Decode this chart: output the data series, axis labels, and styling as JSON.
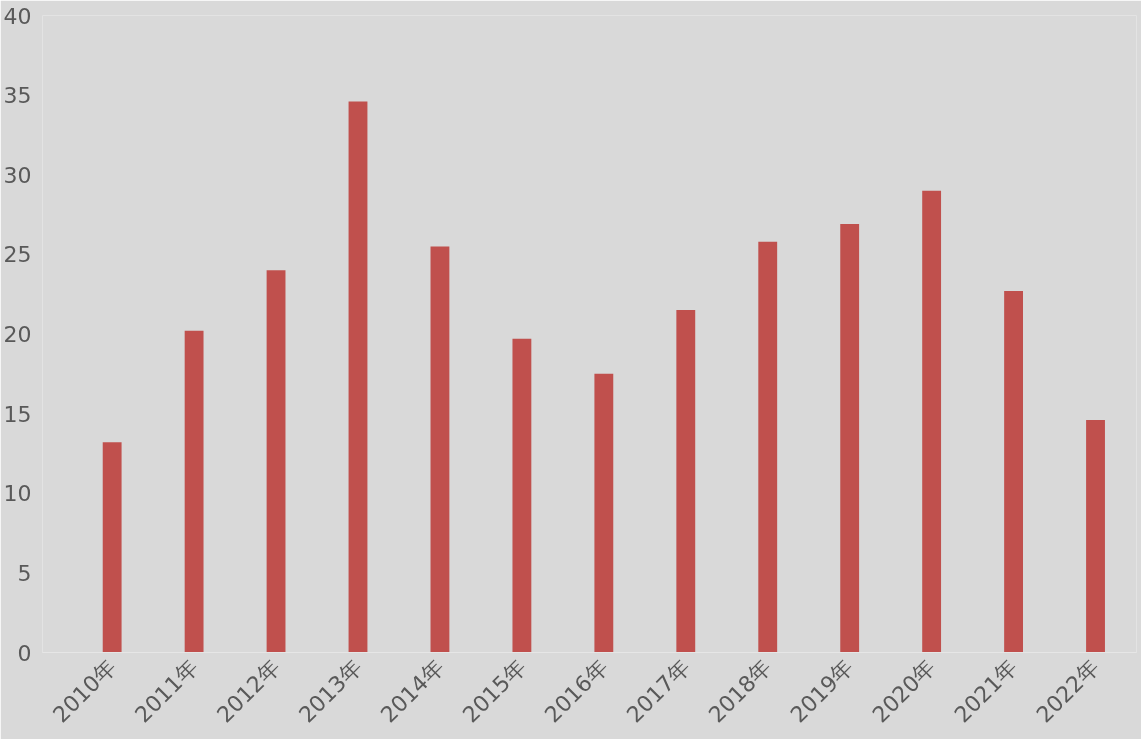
{
  "chart_data": {
    "type": "bar",
    "categories": [
      "2010年",
      "2011年",
      "2012年",
      "2013年",
      "2014年",
      "2015年",
      "2016年",
      "2017年",
      "2018年",
      "2019年",
      "2020年",
      "2021年",
      "2022年"
    ],
    "values": [
      13.2,
      20.2,
      24.0,
      34.6,
      25.5,
      19.7,
      17.5,
      21.5,
      25.8,
      26.9,
      29.0,
      22.7,
      14.6
    ],
    "color": "#c0504d",
    "ylim": [
      0,
      40
    ],
    "yticks": [
      0,
      5,
      10,
      15,
      20,
      25,
      30,
      35,
      40
    ],
    "grid": false
  }
}
